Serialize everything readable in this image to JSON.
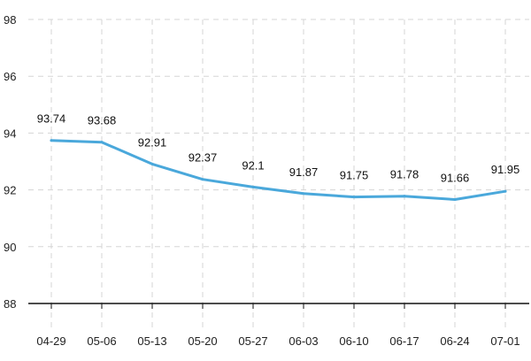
{
  "chart_data": {
    "type": "line",
    "title": "",
    "xlabel": "",
    "ylabel": "",
    "categories": [
      "04-29",
      "05-06",
      "05-13",
      "05-20",
      "05-27",
      "06-03",
      "06-10",
      "06-17",
      "06-24",
      "07-01"
    ],
    "series": [
      {
        "values": [
          93.74,
          93.68,
          92.91,
          92.37,
          92.1,
          91.87,
          91.75,
          91.78,
          91.66,
          91.95
        ],
        "color": "#4aa8db"
      }
    ],
    "data_labels": [
      "93.74",
      "93.68",
      "92.91",
      "92.37",
      "92.1",
      "91.87",
      "91.75",
      "91.78",
      "91.66",
      "91.95"
    ],
    "y_ticks": [
      "98",
      "96",
      "94",
      "92",
      "90",
      "88"
    ],
    "ylim": [
      88,
      98
    ],
    "grid": true,
    "grid_color": "#d5d5d5",
    "axis_color": "#111111"
  }
}
